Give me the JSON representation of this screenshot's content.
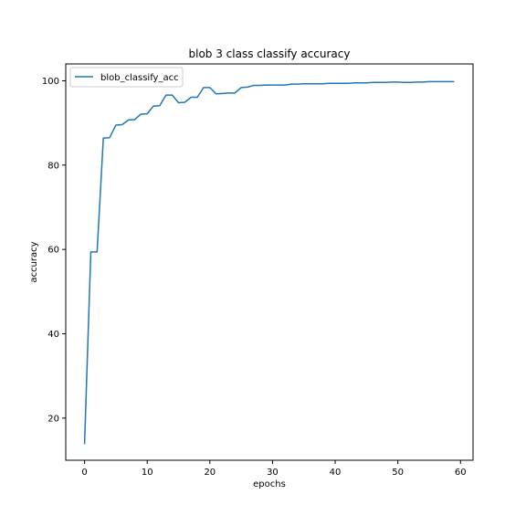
{
  "chart_data": {
    "type": "line",
    "title": "blob 3 class classify accuracy",
    "xlabel": "epochs",
    "ylabel": "accuracy",
    "xlim": [
      -3,
      62
    ],
    "ylim": [
      10,
      104
    ],
    "xticks": [
      0,
      10,
      20,
      30,
      40,
      50,
      60
    ],
    "yticks": [
      20,
      40,
      60,
      80,
      100
    ],
    "grid": false,
    "legend_position": "top-left",
    "series": [
      {
        "name": "blob_classify_acc",
        "color": "#1f77b4",
        "x": [
          0,
          1,
          2,
          3,
          4,
          5,
          6,
          7,
          8,
          9,
          10,
          11,
          12,
          13,
          14,
          15,
          16,
          17,
          18,
          19,
          20,
          21,
          22,
          23,
          24,
          25,
          26,
          27,
          28,
          29,
          30,
          31,
          32,
          33,
          34,
          35,
          36,
          37,
          38,
          39,
          40,
          41,
          42,
          43,
          44,
          45,
          46,
          47,
          48,
          49,
          50,
          51,
          52,
          53,
          54,
          55,
          56,
          57,
          58,
          59
        ],
        "y": [
          13.8,
          59.4,
          59.4,
          86.4,
          86.5,
          89.5,
          89.6,
          90.7,
          90.8,
          92.1,
          92.2,
          94.0,
          94.1,
          96.6,
          96.6,
          94.8,
          94.9,
          96.1,
          96.1,
          98.4,
          98.4,
          96.9,
          97.0,
          97.1,
          97.1,
          98.4,
          98.5,
          98.9,
          98.9,
          99.0,
          99.0,
          99.0,
          99.0,
          99.2,
          99.2,
          99.3,
          99.3,
          99.3,
          99.3,
          99.4,
          99.4,
          99.4,
          99.4,
          99.5,
          99.5,
          99.5,
          99.6,
          99.6,
          99.6,
          99.7,
          99.7,
          99.6,
          99.6,
          99.7,
          99.7,
          99.8,
          99.8,
          99.8,
          99.8,
          99.8
        ]
      }
    ]
  }
}
